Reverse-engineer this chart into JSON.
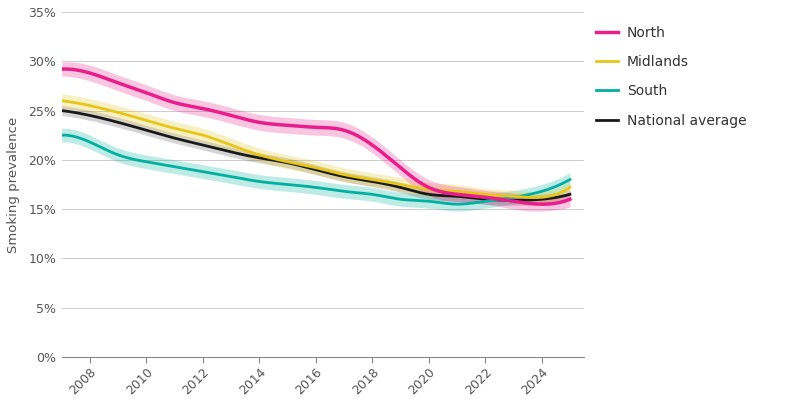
{
  "years": [
    2007,
    2008,
    2009,
    2010,
    2011,
    2012,
    2013,
    2014,
    2015,
    2016,
    2017,
    2018,
    2019,
    2020,
    2021,
    2022,
    2023,
    2024,
    2025
  ],
  "north": [
    29.2,
    28.8,
    27.8,
    26.8,
    25.8,
    25.2,
    24.5,
    23.8,
    23.5,
    23.3,
    23.0,
    21.5,
    19.2,
    17.2,
    16.5,
    16.2,
    15.8,
    15.5,
    16.0
  ],
  "north_lo": [
    28.5,
    28.0,
    27.0,
    26.0,
    25.0,
    24.4,
    23.7,
    23.0,
    22.7,
    22.5,
    22.2,
    20.7,
    18.4,
    16.4,
    15.7,
    15.5,
    15.0,
    14.8,
    15.2
  ],
  "north_hi": [
    29.9,
    29.6,
    28.6,
    27.6,
    26.6,
    26.0,
    25.3,
    24.6,
    24.3,
    24.1,
    23.8,
    22.3,
    20.0,
    18.0,
    17.3,
    16.9,
    16.6,
    16.2,
    16.8
  ],
  "midlands": [
    26.0,
    25.5,
    24.8,
    24.0,
    23.2,
    22.5,
    21.5,
    20.5,
    19.8,
    19.2,
    18.5,
    18.0,
    17.5,
    17.0,
    16.8,
    16.5,
    16.3,
    16.2,
    17.2
  ],
  "midlands_lo": [
    25.3,
    24.8,
    24.1,
    23.3,
    22.5,
    21.8,
    20.8,
    19.8,
    19.1,
    18.5,
    17.8,
    17.3,
    16.8,
    16.3,
    16.1,
    15.9,
    15.7,
    15.6,
    16.6
  ],
  "midlands_hi": [
    26.7,
    26.2,
    25.5,
    24.7,
    23.9,
    23.2,
    22.2,
    21.2,
    20.5,
    19.9,
    19.2,
    18.7,
    18.2,
    17.7,
    17.5,
    17.1,
    16.9,
    16.8,
    17.8
  ],
  "south": [
    22.5,
    21.8,
    20.5,
    19.8,
    19.3,
    18.8,
    18.3,
    17.8,
    17.5,
    17.2,
    16.8,
    16.5,
    16.0,
    15.8,
    15.5,
    15.8,
    16.2,
    16.8,
    18.0
  ],
  "south_lo": [
    21.8,
    21.1,
    19.8,
    19.1,
    18.6,
    18.1,
    17.6,
    17.1,
    16.8,
    16.5,
    16.1,
    15.8,
    15.3,
    15.1,
    14.8,
    15.1,
    15.5,
    16.1,
    17.3
  ],
  "south_hi": [
    23.2,
    22.5,
    21.2,
    20.5,
    20.0,
    19.5,
    19.0,
    18.5,
    18.2,
    17.9,
    17.5,
    17.2,
    16.7,
    16.5,
    16.2,
    16.5,
    16.9,
    17.5,
    18.7
  ],
  "national": [
    25.0,
    24.5,
    23.8,
    23.0,
    22.2,
    21.5,
    20.8,
    20.2,
    19.7,
    19.0,
    18.3,
    17.8,
    17.2,
    16.5,
    16.3,
    16.0,
    15.9,
    16.0,
    16.5
  ],
  "national_lo": [
    24.5,
    24.0,
    23.3,
    22.5,
    21.7,
    21.0,
    20.3,
    19.7,
    19.2,
    18.5,
    17.8,
    17.3,
    16.7,
    16.0,
    15.8,
    15.5,
    15.4,
    15.5,
    16.0
  ],
  "national_hi": [
    25.5,
    25.0,
    24.3,
    23.5,
    22.7,
    22.0,
    21.3,
    20.7,
    20.2,
    19.5,
    18.8,
    18.3,
    17.7,
    17.0,
    16.8,
    16.5,
    16.4,
    16.5,
    17.0
  ],
  "north_color": "#e91e8c",
  "midlands_color": "#e6c619",
  "south_color": "#00b0a0",
  "national_color": "#1a1a1a",
  "ylabel": "Smoking prevalence",
  "ylim": [
    0,
    35
  ],
  "yticks": [
    0,
    5,
    10,
    15,
    20,
    25,
    30,
    35
  ],
  "ytick_labels": [
    "0%",
    "5%",
    "10%",
    "15%",
    "20%",
    "25%",
    "30%",
    "35%"
  ],
  "xlim": [
    2007.0,
    2025.5
  ],
  "xticks": [
    2008,
    2010,
    2012,
    2014,
    2016,
    2018,
    2020,
    2022,
    2024
  ],
  "legend_labels": [
    "North",
    "Midlands",
    "South",
    "National average"
  ],
  "bg_color": "#ffffff",
  "grid_color": "#cccccc",
  "tick_color": "#888888",
  "label_color": "#555555"
}
